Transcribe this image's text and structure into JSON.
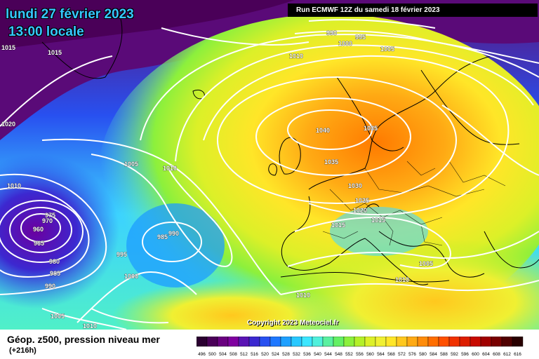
{
  "header": {
    "date_line": "lundi 27 février 2023",
    "time_line": "13:00 locale",
    "run_line": "Run ECMWF 12Z du samedi 18 février 2023"
  },
  "footer": {
    "parameter": "Géop. z500, pression niveau mer",
    "lead_time": "(+216h)",
    "copyright": "Copyright 2023 Meteociel.fr"
  },
  "pressure_labels": [
    "1015",
    "1015",
    "1020",
    "1005",
    "1010",
    "1010",
    "975",
    "970",
    "960",
    "965",
    "980",
    "985",
    "990",
    "995",
    "1000",
    "985",
    "990",
    "1005",
    "1010",
    "990",
    "995",
    "1000",
    "1005",
    "1010",
    "1040",
    "1035",
    "1035",
    "1030",
    "1025",
    "1020",
    "1015",
    "1015",
    "1005",
    "1010",
    "1010"
  ],
  "colorbar": {
    "labels": [
      "496",
      "500",
      "504",
      "508",
      "512",
      "516",
      "520",
      "524",
      "528",
      "532",
      "536",
      "540",
      "544",
      "548",
      "552",
      "556",
      "560",
      "564",
      "568",
      "572",
      "576",
      "580",
      "584",
      "588",
      "592",
      "596",
      "600",
      "604",
      "608",
      "612",
      "616"
    ],
    "colors": [
      "#2a0030",
      "#4a0058",
      "#6a0080",
      "#8000a0",
      "#5a14b4",
      "#3c28d0",
      "#2850f0",
      "#1e78ff",
      "#1ea0ff",
      "#28c8ff",
      "#3ce6ff",
      "#50f0dc",
      "#5af0a0",
      "#64f064",
      "#8cf03c",
      "#b4f028",
      "#dcf028",
      "#f0f032",
      "#ffe628",
      "#ffc81e",
      "#ffaa14",
      "#ff8c0a",
      "#ff6e00",
      "#ff5000",
      "#f03200",
      "#dc1e00",
      "#c80a00",
      "#a00000",
      "#780000",
      "#500000",
      "#280000"
    ]
  },
  "colors": {
    "contour": "#ffffff",
    "coastline": "#000000",
    "title": "#36c8ff"
  }
}
